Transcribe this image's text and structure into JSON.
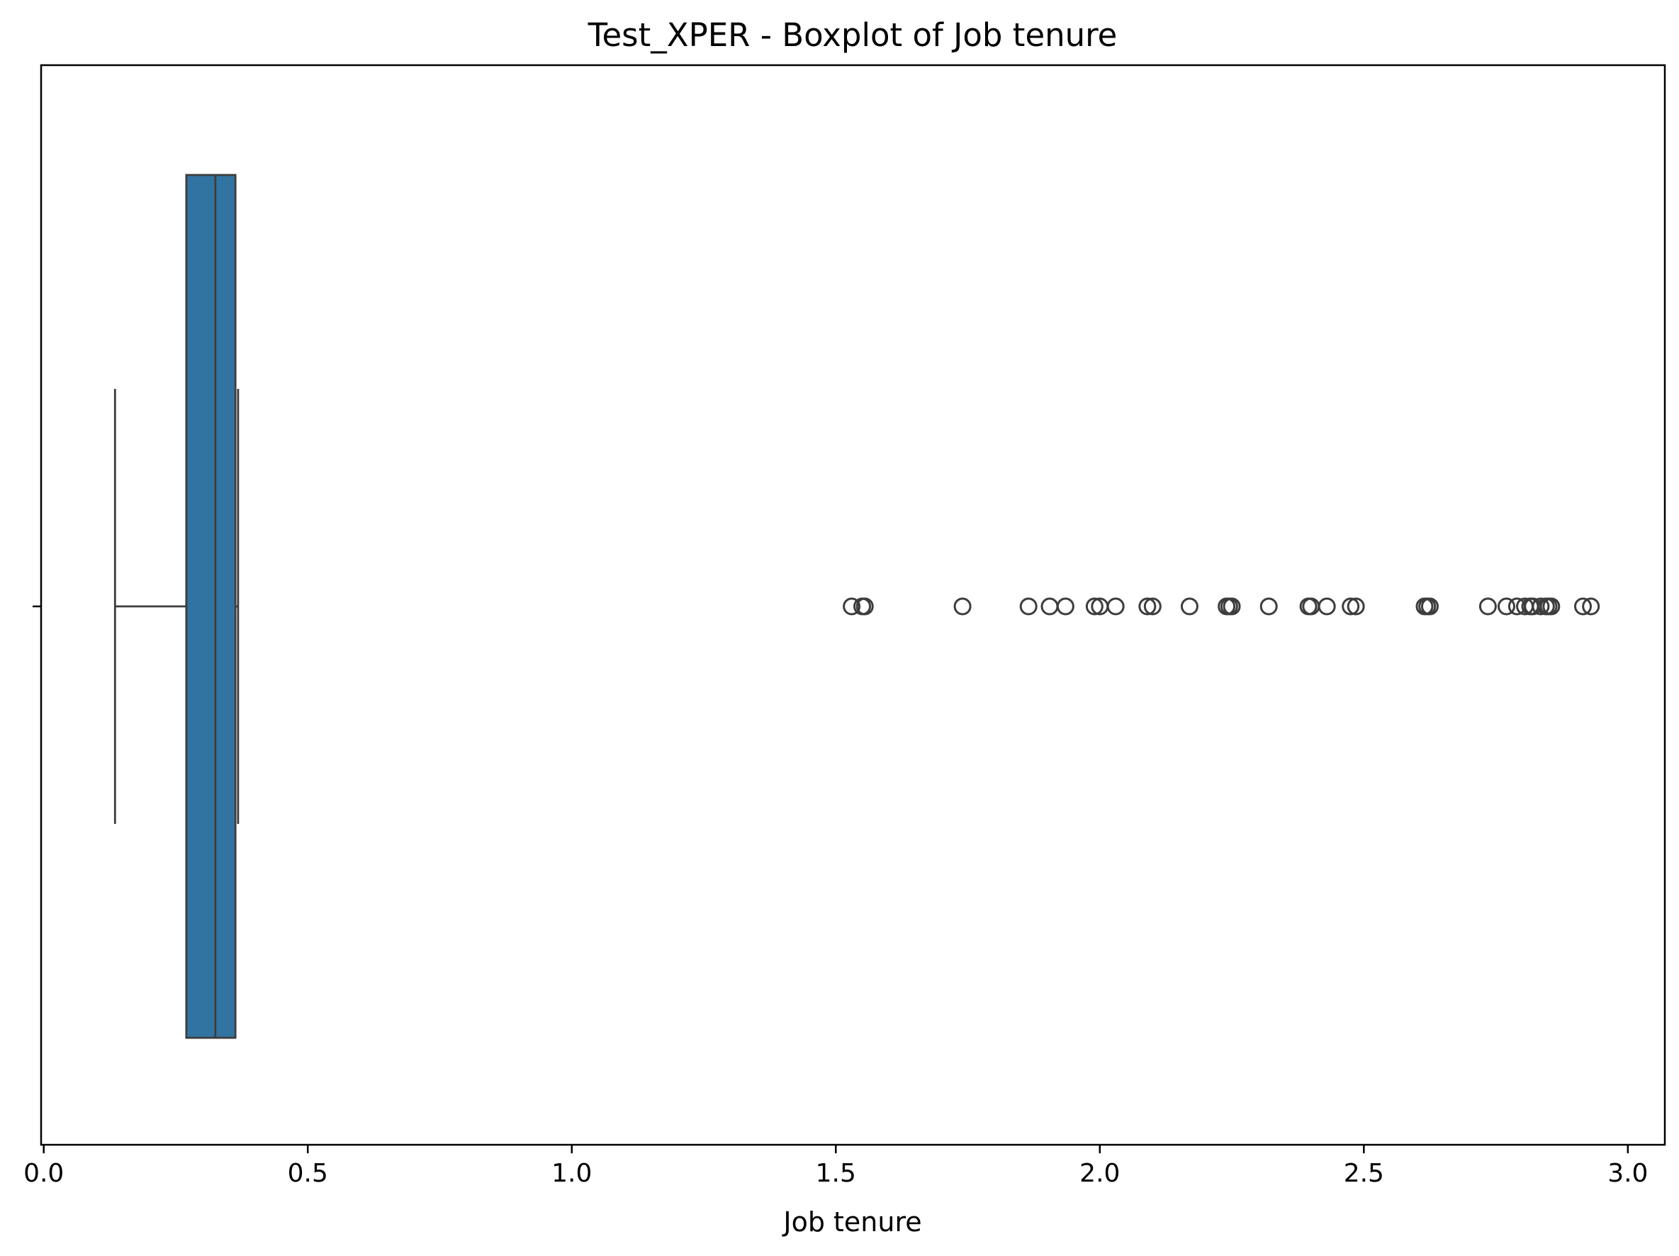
{
  "chart_data": {
    "type": "boxplot",
    "orientation": "horizontal",
    "title": "Test_XPER - Boxplot of Job tenure",
    "xlabel": "Job tenure",
    "ylabel": "",
    "xlim": [
      -0.005,
      3.07
    ],
    "xticks": [
      0.0,
      0.5,
      1.0,
      1.5,
      2.0,
      2.5,
      3.0
    ],
    "xtick_labels": [
      "0.0",
      "0.5",
      "1.0",
      "1.5",
      "2.0",
      "2.5",
      "3.0"
    ],
    "grid": false,
    "box": {
      "whisker_low": 0.135,
      "q1": 0.27,
      "median": 0.325,
      "q3": 0.363,
      "whisker_high": 0.368,
      "fill_color": "#3274a1",
      "line_color": "#3d3d3d"
    },
    "outliers": [
      1.53,
      1.55,
      1.555,
      1.74,
      1.865,
      1.905,
      1.935,
      1.99,
      2.0,
      2.03,
      2.09,
      2.1,
      2.17,
      2.24,
      2.245,
      2.25,
      2.32,
      2.395,
      2.4,
      2.43,
      2.475,
      2.485,
      2.615,
      2.62,
      2.625,
      2.735,
      2.77,
      2.79,
      2.805,
      2.815,
      2.82,
      2.835,
      2.845,
      2.85,
      2.855,
      2.915,
      2.93
    ]
  }
}
